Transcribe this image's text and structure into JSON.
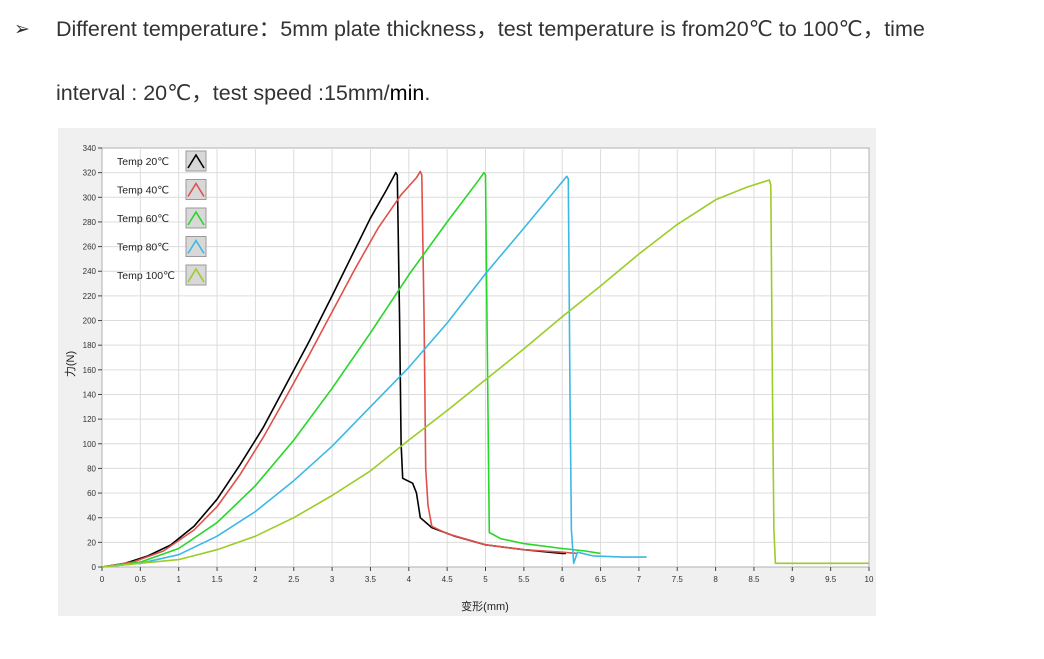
{
  "text": {
    "bullet": "➢",
    "line1": "Different temperature：5mm plate thickness，test temperature is from20℃  to 100℃，time",
    "line2_prefix": "interval : 20℃，test speed :15mm/",
    "line2_unit": "min",
    "line2_suffix": "."
  },
  "chart_data": {
    "type": "line",
    "xlabel": "变形(mm)",
    "ylabel": "力(N)",
    "xlim": [
      0,
      10
    ],
    "ylim": [
      0,
      340
    ],
    "x_ticks": [
      "0",
      "0.5",
      "1",
      "1.5",
      "2",
      "2.5",
      "3",
      "3.5",
      "4",
      "4.5",
      "5",
      "5.5",
      "6",
      "6.5",
      "7",
      "7.5",
      "8",
      "8.5",
      "9",
      "9.5",
      "10"
    ],
    "y_ticks": [
      "0",
      "20",
      "40",
      "60",
      "80",
      "100",
      "120",
      "140",
      "160",
      "180",
      "200",
      "220",
      "240",
      "260",
      "280",
      "300",
      "320",
      "340"
    ],
    "grid": true,
    "legend_position": "top-left",
    "series": [
      {
        "name": "Temp 20℃",
        "color": "#000000",
        "points": [
          [
            0,
            0
          ],
          [
            0.3,
            3
          ],
          [
            0.6,
            9
          ],
          [
            0.9,
            18
          ],
          [
            1.2,
            33
          ],
          [
            1.5,
            55
          ],
          [
            1.8,
            83
          ],
          [
            2.1,
            113
          ],
          [
            2.4,
            148
          ],
          [
            2.7,
            183
          ],
          [
            3.0,
            220
          ],
          [
            3.3,
            258
          ],
          [
            3.5,
            283
          ],
          [
            3.7,
            305
          ],
          [
            3.83,
            320
          ],
          [
            3.85,
            318
          ],
          [
            3.88,
            200
          ],
          [
            3.9,
            100
          ],
          [
            3.92,
            72
          ],
          [
            4.05,
            68
          ],
          [
            4.1,
            60
          ],
          [
            4.15,
            40
          ],
          [
            4.3,
            32
          ],
          [
            4.6,
            25
          ],
          [
            5.0,
            18
          ],
          [
            5.5,
            14
          ],
          [
            6.0,
            11
          ],
          [
            6.05,
            11
          ]
        ]
      },
      {
        "name": "Temp 40℃",
        "color": "#e0504b",
        "points": [
          [
            0,
            0
          ],
          [
            0.4,
            4
          ],
          [
            0.8,
            13
          ],
          [
            1.2,
            30
          ],
          [
            1.5,
            49
          ],
          [
            1.8,
            75
          ],
          [
            2.1,
            105
          ],
          [
            2.4,
            138
          ],
          [
            2.7,
            172
          ],
          [
            3.0,
            207
          ],
          [
            3.3,
            242
          ],
          [
            3.6,
            275
          ],
          [
            3.9,
            302
          ],
          [
            4.1,
            316
          ],
          [
            4.15,
            321
          ],
          [
            4.17,
            318
          ],
          [
            4.2,
            200
          ],
          [
            4.22,
            80
          ],
          [
            4.25,
            50
          ],
          [
            4.3,
            33
          ],
          [
            4.5,
            27
          ],
          [
            5.0,
            18
          ],
          [
            5.5,
            14
          ],
          [
            6.0,
            12
          ],
          [
            6.2,
            11
          ]
        ]
      },
      {
        "name": "Temp 60℃",
        "color": "#27d727",
        "points": [
          [
            0,
            0
          ],
          [
            0.5,
            4
          ],
          [
            1.0,
            15
          ],
          [
            1.5,
            36
          ],
          [
            2.0,
            66
          ],
          [
            2.5,
            103
          ],
          [
            3.0,
            145
          ],
          [
            3.5,
            190
          ],
          [
            4.0,
            237
          ],
          [
            4.5,
            280
          ],
          [
            4.9,
            313
          ],
          [
            4.98,
            320
          ],
          [
            5.0,
            318
          ],
          [
            5.02,
            200
          ],
          [
            5.04,
            80
          ],
          [
            5.05,
            28
          ],
          [
            5.2,
            23
          ],
          [
            5.5,
            19
          ],
          [
            6.0,
            15
          ],
          [
            6.3,
            13
          ],
          [
            6.5,
            11
          ]
        ]
      },
      {
        "name": "Temp 80℃",
        "color": "#3cb8e6",
        "points": [
          [
            0,
            0
          ],
          [
            0.5,
            3
          ],
          [
            1.0,
            10
          ],
          [
            1.5,
            25
          ],
          [
            2.0,
            45
          ],
          [
            2.5,
            70
          ],
          [
            3.0,
            98
          ],
          [
            3.5,
            130
          ],
          [
            4.0,
            162
          ],
          [
            4.5,
            198
          ],
          [
            5.0,
            238
          ],
          [
            5.5,
            275
          ],
          [
            5.9,
            305
          ],
          [
            6.06,
            317
          ],
          [
            6.08,
            315
          ],
          [
            6.1,
            150
          ],
          [
            6.12,
            30
          ],
          [
            6.15,
            3
          ],
          [
            6.2,
            12
          ],
          [
            6.4,
            9
          ],
          [
            6.8,
            8
          ],
          [
            7.1,
            8
          ]
        ]
      },
      {
        "name": "Temp 100℃",
        "color": "#9ccc28",
        "points": [
          [
            0,
            0
          ],
          [
            1.0,
            6
          ],
          [
            1.5,
            14
          ],
          [
            2.0,
            25
          ],
          [
            2.5,
            40
          ],
          [
            3.0,
            58
          ],
          [
            3.5,
            78
          ],
          [
            4.0,
            103
          ],
          [
            4.5,
            127
          ],
          [
            5.0,
            152
          ],
          [
            5.5,
            177
          ],
          [
            6.0,
            203
          ],
          [
            6.5,
            228
          ],
          [
            7.0,
            254
          ],
          [
            7.5,
            278
          ],
          [
            8.0,
            298
          ],
          [
            8.4,
            308
          ],
          [
            8.7,
            314
          ],
          [
            8.72,
            310
          ],
          [
            8.74,
            150
          ],
          [
            8.76,
            30
          ],
          [
            8.78,
            3
          ],
          [
            9.2,
            3
          ],
          [
            9.8,
            3
          ],
          [
            10.0,
            3
          ]
        ]
      }
    ]
  }
}
